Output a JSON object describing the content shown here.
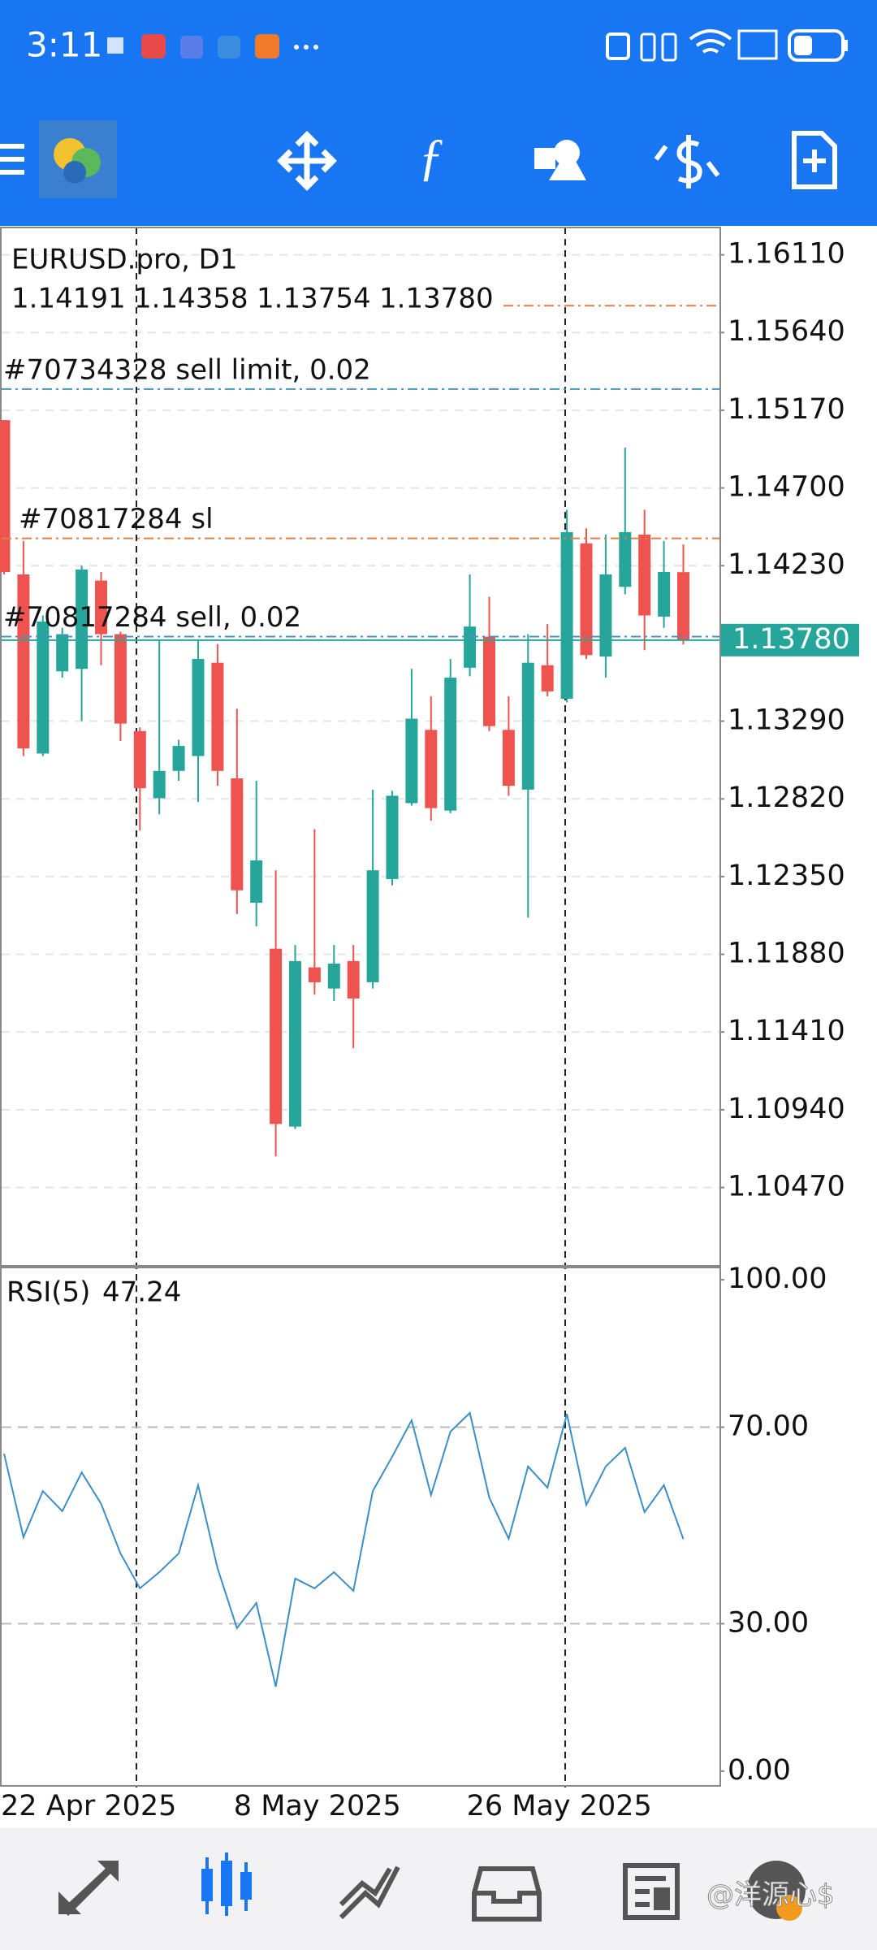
{
  "status_bar": {
    "time": "3:11"
  },
  "chart_data": [
    {
      "type": "candlestick",
      "title": "EURUSD.pro, D1",
      "ohlc_labels": [
        "1.14191",
        "1.14358",
        "1.13754",
        "1.13780"
      ],
      "categories": [
        "22 Apr 2025",
        null,
        null,
        null,
        null,
        null,
        null,
        null,
        null,
        null,
        null,
        null,
        "8 May 2025",
        null,
        null,
        null,
        null,
        null,
        null,
        null,
        null,
        null,
        null,
        null,
        "26 May 2025",
        null,
        null,
        null,
        null,
        null,
        null,
        null,
        null,
        null,
        null,
        null
      ],
      "series": {
        "open": [
          1.1511,
          1.14177,
          1.13094,
          1.13591,
          1.13606,
          1.1414,
          1.13816,
          1.1323,
          1.12824,
          1.12989,
          1.13079,
          1.13643,
          1.12944,
          1.12192,
          1.11914,
          1.10838,
          1.11801,
          1.11673,
          1.11839,
          1.11711,
          1.12335,
          1.12794,
          1.13237,
          1.12749,
          1.13613,
          1.13801,
          1.13237,
          1.12876,
          1.13628,
          1.13425,
          1.14365,
          1.13681,
          1.14102,
          1.14418,
          1.13922,
          1.14191
        ],
        "high": [
          1.1511,
          1.1438,
          1.13929,
          1.13854,
          1.1423,
          1.14192,
          1.13831,
          1.13252,
          1.13779,
          1.13177,
          1.13779,
          1.13756,
          1.13365,
          1.12929,
          1.12388,
          1.11936,
          1.12636,
          1.11936,
          1.11936,
          1.12876,
          1.12869,
          1.13606,
          1.1344,
          1.13666,
          1.14177,
          1.14042,
          1.1344,
          1.13816,
          1.13877,
          1.14568,
          1.14456,
          1.14418,
          1.14944,
          1.14568,
          1.1438,
          1.14358
        ],
        "low": [
          1.14177,
          1.13079,
          1.13079,
          1.13553,
          1.1329,
          1.13628,
          1.1317,
          1.12628,
          1.12726,
          1.12929,
          1.12801,
          1.12899,
          1.12124,
          1.12049,
          1.10658,
          1.10823,
          1.11636,
          1.11598,
          1.11312,
          1.11673,
          1.12297,
          1.12779,
          1.12688,
          1.12734,
          1.13561,
          1.1323,
          1.12839,
          1.12102,
          1.1344,
          1.13403,
          1.13666,
          1.13553,
          1.14057,
          1.13719,
          1.13854,
          1.13754
        ],
        "close": [
          1.14192,
          1.13125,
          1.13892,
          1.13816,
          1.14207,
          1.13816,
          1.13275,
          1.12884,
          1.12989,
          1.1314,
          1.13666,
          1.12989,
          1.12267,
          1.12448,
          1.10854,
          1.11839,
          1.11711,
          1.11824,
          1.11613,
          1.12388,
          1.12839,
          1.13305,
          1.12764,
          1.13553,
          1.13862,
          1.1326,
          1.12899,
          1.13643,
          1.1347,
          1.14433,
          1.13689,
          1.14177,
          1.14433,
          1.13929,
          1.14192,
          1.1378
        ]
      },
      "up_color": "#26a69a",
      "down_color": "#ef5350",
      "ylim": [
        1.09996,
        1.16275
      ],
      "yticks": [
        {
          "value": 1.1611,
          "label": "1.16110"
        },
        {
          "value": 1.1564,
          "label": "1.15640"
        },
        {
          "value": 1.1517,
          "label": "1.15170"
        },
        {
          "value": 1.147,
          "label": "1.14700"
        },
        {
          "value": 1.1423,
          "label": "1.14230"
        },
        {
          "value": 1.1329,
          "label": "1.13290"
        },
        {
          "value": 1.1282,
          "label": "1.12820"
        },
        {
          "value": 1.1235,
          "label": "1.12350"
        },
        {
          "value": 1.1188,
          "label": "1.11880"
        },
        {
          "value": 1.1141,
          "label": "1.11410"
        },
        {
          "value": 1.1094,
          "label": "1.10940"
        },
        {
          "value": 1.1047,
          "label": "1.10470"
        }
      ],
      "grid": true,
      "current_price": {
        "value": 1.1378,
        "label": "1.13780"
      },
      "current_color": "#26a69a",
      "levels": [
        {
          "value": 1.15802,
          "color": "#d9824a"
        },
        {
          "name": "#70734328 sell limit, 0.02",
          "value": 1.15298,
          "color": "#4a90b8"
        },
        {
          "name": "#70817284 sl",
          "value": 1.14395,
          "color": "#d9824a"
        },
        {
          "name": "#70817284 sell, 0.02",
          "value": 1.13801,
          "color": "#4a90b8"
        }
      ]
    },
    {
      "type": "line",
      "title": "RSI(5)",
      "values": [
        64.6,
        47.6,
        57,
        52.9,
        60.8,
        54.4,
        44.3,
        37.2,
        40.5,
        44.3,
        58.2,
        41.3,
        29.1,
        34.2,
        17.2,
        39.2,
        37.2,
        40.5,
        36.7,
        57,
        64,
        71.4,
        56.2,
        69.1,
        72.9,
        55.7,
        47.3,
        62,
        57.7,
        72.7,
        54.2,
        62,
        65.8,
        52.7,
        58.2,
        47.24
      ],
      "color": "#3b8fc6",
      "ylim": [
        -3,
        102.5
      ],
      "yticks": [
        {
          "value": 100,
          "label": "100.00"
        },
        {
          "value": 70,
          "label": "70.00"
        },
        {
          "value": 30,
          "label": "30.00"
        },
        {
          "value": 0,
          "label": "0.00"
        }
      ],
      "levels": [
        70,
        30
      ]
    }
  ],
  "watermark": "@洋源心$"
}
